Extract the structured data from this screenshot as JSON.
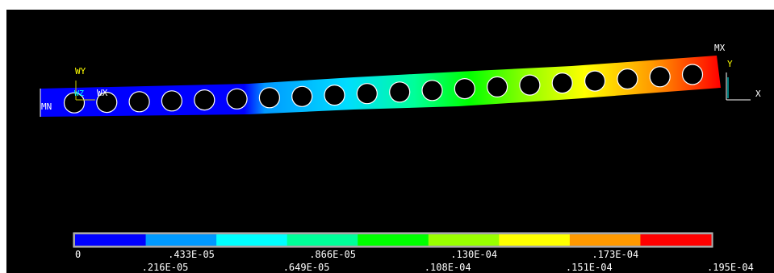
{
  "viewport": {
    "background": "#000000",
    "markers": {
      "min": "MN",
      "max": "MX"
    },
    "working_plane": {
      "y": "WY",
      "z": "WZ",
      "x": "WX"
    },
    "global_axes": {
      "y": "Y",
      "x": "X"
    }
  },
  "legend": {
    "colors": [
      "#0000ff",
      "#0099ff",
      "#00ffff",
      "#00ff99",
      "#00ff00",
      "#99ff00",
      "#ffff00",
      "#ff9900",
      "#ff0000"
    ],
    "values_top": [
      "0",
      ".433E-05",
      ".866E-05",
      ".130E-04",
      ".173E-04"
    ],
    "values_bottom": [
      ".216E-05",
      ".649E-05",
      ".108E-04",
      ".151E-04",
      ".195E-04"
    ]
  },
  "beam": {
    "hole_count": 20
  }
}
